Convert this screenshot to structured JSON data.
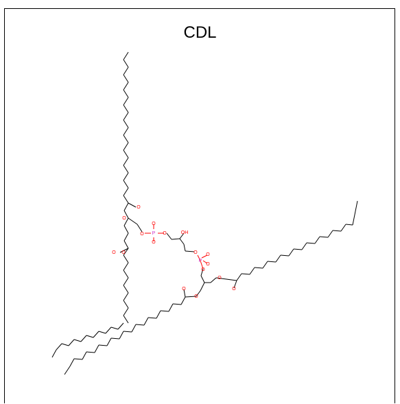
{
  "title": "CDL",
  "atom_labels": {
    "oxygen": "O",
    "phosphorus": "P",
    "hydroxyl": "OH"
  },
  "colors": {
    "bond": "#000000",
    "oxygen": "#ff0000",
    "phosphorus": "#cc33cc"
  }
}
